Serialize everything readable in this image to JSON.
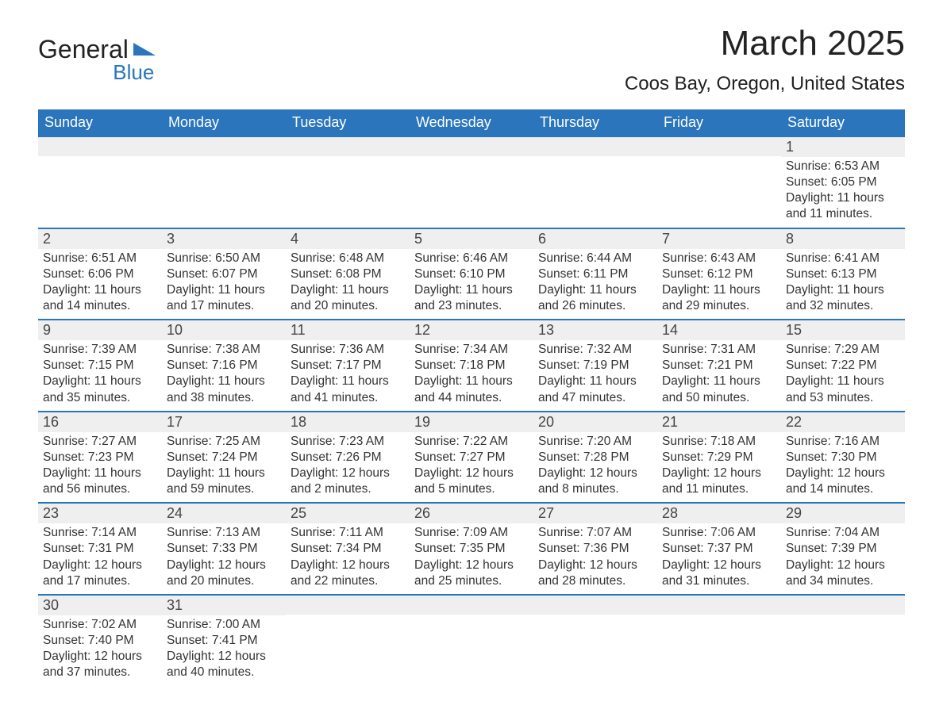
{
  "logo": {
    "text_general": "General",
    "text_blue": "Blue"
  },
  "header": {
    "month_title": "March 2025",
    "location": "Coos Bay, Oregon, United States"
  },
  "colors": {
    "header_bg": "#2a75bb",
    "header_text": "#ffffff",
    "daynum_bg": "#efefef",
    "border": "#2a75bb",
    "text": "#333333",
    "page_bg": "#ffffff"
  },
  "weekdays": [
    "Sunday",
    "Monday",
    "Tuesday",
    "Wednesday",
    "Thursday",
    "Friday",
    "Saturday"
  ],
  "weeks": [
    [
      {
        "num": "",
        "sunrise": "",
        "sunset": "",
        "daylight": ""
      },
      {
        "num": "",
        "sunrise": "",
        "sunset": "",
        "daylight": ""
      },
      {
        "num": "",
        "sunrise": "",
        "sunset": "",
        "daylight": ""
      },
      {
        "num": "",
        "sunrise": "",
        "sunset": "",
        "daylight": ""
      },
      {
        "num": "",
        "sunrise": "",
        "sunset": "",
        "daylight": ""
      },
      {
        "num": "",
        "sunrise": "",
        "sunset": "",
        "daylight": ""
      },
      {
        "num": "1",
        "sunrise": "Sunrise: 6:53 AM",
        "sunset": "Sunset: 6:05 PM",
        "daylight": "Daylight: 11 hours and 11 minutes."
      }
    ],
    [
      {
        "num": "2",
        "sunrise": "Sunrise: 6:51 AM",
        "sunset": "Sunset: 6:06 PM",
        "daylight": "Daylight: 11 hours and 14 minutes."
      },
      {
        "num": "3",
        "sunrise": "Sunrise: 6:50 AM",
        "sunset": "Sunset: 6:07 PM",
        "daylight": "Daylight: 11 hours and 17 minutes."
      },
      {
        "num": "4",
        "sunrise": "Sunrise: 6:48 AM",
        "sunset": "Sunset: 6:08 PM",
        "daylight": "Daylight: 11 hours and 20 minutes."
      },
      {
        "num": "5",
        "sunrise": "Sunrise: 6:46 AM",
        "sunset": "Sunset: 6:10 PM",
        "daylight": "Daylight: 11 hours and 23 minutes."
      },
      {
        "num": "6",
        "sunrise": "Sunrise: 6:44 AM",
        "sunset": "Sunset: 6:11 PM",
        "daylight": "Daylight: 11 hours and 26 minutes."
      },
      {
        "num": "7",
        "sunrise": "Sunrise: 6:43 AM",
        "sunset": "Sunset: 6:12 PM",
        "daylight": "Daylight: 11 hours and 29 minutes."
      },
      {
        "num": "8",
        "sunrise": "Sunrise: 6:41 AM",
        "sunset": "Sunset: 6:13 PM",
        "daylight": "Daylight: 11 hours and 32 minutes."
      }
    ],
    [
      {
        "num": "9",
        "sunrise": "Sunrise: 7:39 AM",
        "sunset": "Sunset: 7:15 PM",
        "daylight": "Daylight: 11 hours and 35 minutes."
      },
      {
        "num": "10",
        "sunrise": "Sunrise: 7:38 AM",
        "sunset": "Sunset: 7:16 PM",
        "daylight": "Daylight: 11 hours and 38 minutes."
      },
      {
        "num": "11",
        "sunrise": "Sunrise: 7:36 AM",
        "sunset": "Sunset: 7:17 PM",
        "daylight": "Daylight: 11 hours and 41 minutes."
      },
      {
        "num": "12",
        "sunrise": "Sunrise: 7:34 AM",
        "sunset": "Sunset: 7:18 PM",
        "daylight": "Daylight: 11 hours and 44 minutes."
      },
      {
        "num": "13",
        "sunrise": "Sunrise: 7:32 AM",
        "sunset": "Sunset: 7:19 PM",
        "daylight": "Daylight: 11 hours and 47 minutes."
      },
      {
        "num": "14",
        "sunrise": "Sunrise: 7:31 AM",
        "sunset": "Sunset: 7:21 PM",
        "daylight": "Daylight: 11 hours and 50 minutes."
      },
      {
        "num": "15",
        "sunrise": "Sunrise: 7:29 AM",
        "sunset": "Sunset: 7:22 PM",
        "daylight": "Daylight: 11 hours and 53 minutes."
      }
    ],
    [
      {
        "num": "16",
        "sunrise": "Sunrise: 7:27 AM",
        "sunset": "Sunset: 7:23 PM",
        "daylight": "Daylight: 11 hours and 56 minutes."
      },
      {
        "num": "17",
        "sunrise": "Sunrise: 7:25 AM",
        "sunset": "Sunset: 7:24 PM",
        "daylight": "Daylight: 11 hours and 59 minutes."
      },
      {
        "num": "18",
        "sunrise": "Sunrise: 7:23 AM",
        "sunset": "Sunset: 7:26 PM",
        "daylight": "Daylight: 12 hours and 2 minutes."
      },
      {
        "num": "19",
        "sunrise": "Sunrise: 7:22 AM",
        "sunset": "Sunset: 7:27 PM",
        "daylight": "Daylight: 12 hours and 5 minutes."
      },
      {
        "num": "20",
        "sunrise": "Sunrise: 7:20 AM",
        "sunset": "Sunset: 7:28 PM",
        "daylight": "Daylight: 12 hours and 8 minutes."
      },
      {
        "num": "21",
        "sunrise": "Sunrise: 7:18 AM",
        "sunset": "Sunset: 7:29 PM",
        "daylight": "Daylight: 12 hours and 11 minutes."
      },
      {
        "num": "22",
        "sunrise": "Sunrise: 7:16 AM",
        "sunset": "Sunset: 7:30 PM",
        "daylight": "Daylight: 12 hours and 14 minutes."
      }
    ],
    [
      {
        "num": "23",
        "sunrise": "Sunrise: 7:14 AM",
        "sunset": "Sunset: 7:31 PM",
        "daylight": "Daylight: 12 hours and 17 minutes."
      },
      {
        "num": "24",
        "sunrise": "Sunrise: 7:13 AM",
        "sunset": "Sunset: 7:33 PM",
        "daylight": "Daylight: 12 hours and 20 minutes."
      },
      {
        "num": "25",
        "sunrise": "Sunrise: 7:11 AM",
        "sunset": "Sunset: 7:34 PM",
        "daylight": "Daylight: 12 hours and 22 minutes."
      },
      {
        "num": "26",
        "sunrise": "Sunrise: 7:09 AM",
        "sunset": "Sunset: 7:35 PM",
        "daylight": "Daylight: 12 hours and 25 minutes."
      },
      {
        "num": "27",
        "sunrise": "Sunrise: 7:07 AM",
        "sunset": "Sunset: 7:36 PM",
        "daylight": "Daylight: 12 hours and 28 minutes."
      },
      {
        "num": "28",
        "sunrise": "Sunrise: 7:06 AM",
        "sunset": "Sunset: 7:37 PM",
        "daylight": "Daylight: 12 hours and 31 minutes."
      },
      {
        "num": "29",
        "sunrise": "Sunrise: 7:04 AM",
        "sunset": "Sunset: 7:39 PM",
        "daylight": "Daylight: 12 hours and 34 minutes."
      }
    ],
    [
      {
        "num": "30",
        "sunrise": "Sunrise: 7:02 AM",
        "sunset": "Sunset: 7:40 PM",
        "daylight": "Daylight: 12 hours and 37 minutes."
      },
      {
        "num": "31",
        "sunrise": "Sunrise: 7:00 AM",
        "sunset": "Sunset: 7:41 PM",
        "daylight": "Daylight: 12 hours and 40 minutes."
      },
      {
        "num": "",
        "sunrise": "",
        "sunset": "",
        "daylight": ""
      },
      {
        "num": "",
        "sunrise": "",
        "sunset": "",
        "daylight": ""
      },
      {
        "num": "",
        "sunrise": "",
        "sunset": "",
        "daylight": ""
      },
      {
        "num": "",
        "sunrise": "",
        "sunset": "",
        "daylight": ""
      },
      {
        "num": "",
        "sunrise": "",
        "sunset": "",
        "daylight": ""
      }
    ]
  ]
}
